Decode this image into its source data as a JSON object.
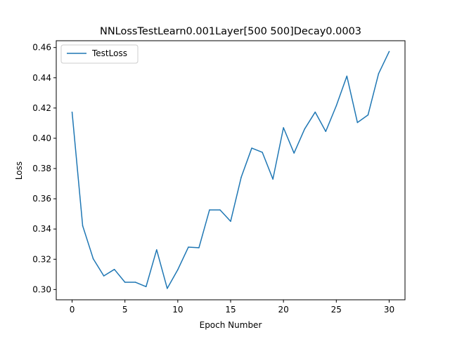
{
  "chart_data": {
    "type": "line",
    "title": "NNLossTestLearn0.001Layer[500 500]Decay0.0003",
    "xlabel": "Epoch Number",
    "ylabel": "Loss",
    "xlim": [
      -1.5,
      31.5
    ],
    "ylim": [
      0.2932,
      0.4645
    ],
    "xticks": [
      0,
      5,
      10,
      15,
      20,
      25,
      30
    ],
    "yticks": [
      0.3,
      0.32,
      0.34,
      0.36,
      0.38,
      0.4,
      0.42,
      0.44,
      0.46
    ],
    "xtick_labels": [
      "0",
      "5",
      "10",
      "15",
      "20",
      "25",
      "30"
    ],
    "ytick_labels": [
      "0.30",
      "0.32",
      "0.34",
      "0.36",
      "0.38",
      "0.40",
      "0.42",
      "0.44",
      "0.46"
    ],
    "legend_position": "upper-left",
    "grid": false,
    "series": [
      {
        "name": "TestLoss",
        "color": "#1f77b4",
        "x": [
          0,
          1,
          2,
          3,
          4,
          5,
          6,
          7,
          8,
          9,
          10,
          11,
          12,
          13,
          14,
          15,
          16,
          17,
          18,
          19,
          20,
          21,
          22,
          23,
          24,
          25,
          26,
          27,
          28,
          29,
          30
        ],
        "values": [
          0.4172,
          0.3421,
          0.3203,
          0.309,
          0.3133,
          0.3048,
          0.3048,
          0.3019,
          0.3263,
          0.3007,
          0.3131,
          0.328,
          0.3276,
          0.3526,
          0.3526,
          0.3451,
          0.3742,
          0.3935,
          0.3907,
          0.373,
          0.407,
          0.3902,
          0.4061,
          0.4173,
          0.4045,
          0.4215,
          0.4411,
          0.4104,
          0.4154,
          0.4427,
          0.4573
        ]
      }
    ]
  }
}
